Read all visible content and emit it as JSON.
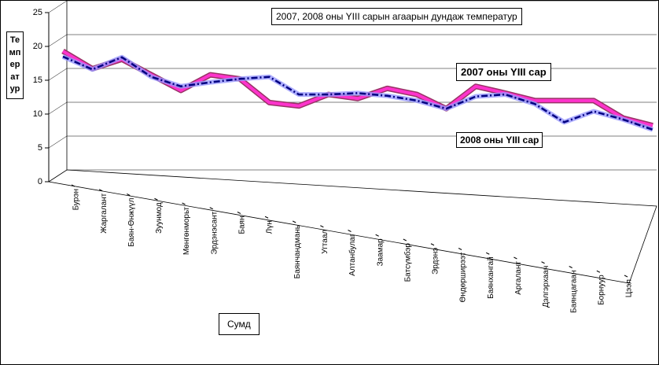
{
  "chart_data": {
    "type": "line",
    "title": "2007, 2008 оны YIII сарын агаарын дундаж температур",
    "y_label": "Температур",
    "x_label": "Сумд",
    "categories": [
      "Бурэн",
      "Жаргалант",
      "Баян-Өнжүүл",
      "Зуунмод",
      "Мөнгөнморьт",
      "Эрдэнэсант",
      "Баян",
      "Лүн",
      "Баянчандмань",
      "Угтаал",
      "Алтанбулаг",
      "Заамар",
      "Батсүмбэр",
      "Эрдэнэ",
      "Өндөрширээт",
      "Баянхангай",
      "Аргалант",
      "Дэлгэрхаан",
      "Баянцагаан",
      "Борнуур",
      "Цээл"
    ],
    "series": [
      {
        "name": "2007 оны YIII сар",
        "color": "#ff33cc",
        "values": [
          18.6,
          16.0,
          17.4,
          15.1,
          12.8,
          15.1,
          14.5,
          11.0,
          10.5,
          12.2,
          11.6,
          13.1,
          12.2,
          10.1,
          13.4,
          12.4,
          11.3,
          11.3,
          11.3,
          8.7,
          7.6
        ]
      },
      {
        "name": "2008 оны YIII сар",
        "color": "#000080",
        "values": [
          17.8,
          15.9,
          17.7,
          14.8,
          13.4,
          14.0,
          14.5,
          14.8,
          12.2,
          12.2,
          12.4,
          12.0,
          11.3,
          10.1,
          11.9,
          12.2,
          10.8,
          8.1,
          9.7,
          8.5,
          7.0
        ]
      }
    ],
    "ylim": [
      0,
      25
    ],
    "yticks": [
      0,
      5,
      10,
      15,
      20,
      25
    ],
    "grid": true
  }
}
